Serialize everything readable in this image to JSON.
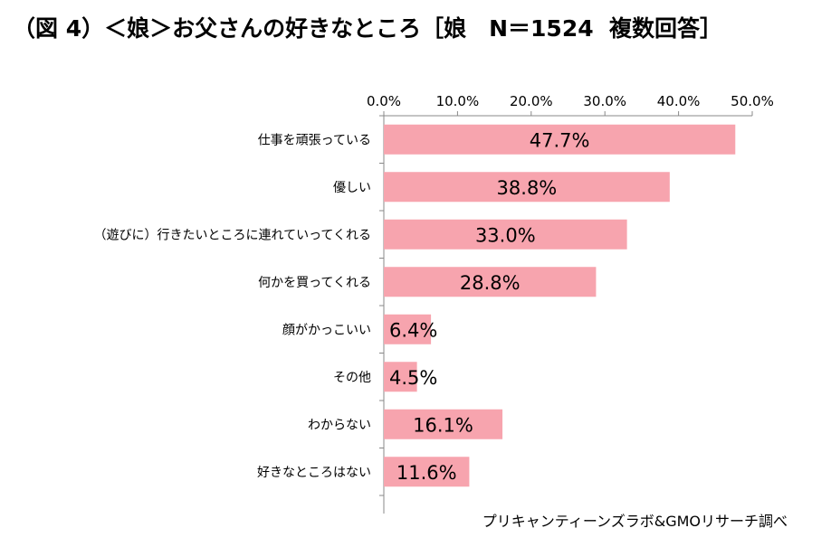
{
  "title": "（図 4）＜娘＞お父さんの好きなところ［娘　N＝1524  複数回答］",
  "source": "プリキャンティーンズラボ&GMOリサーチ調べ",
  "colors": {
    "bar": "#f7a4ae",
    "axis": "#888888"
  },
  "chart_data": {
    "type": "bar",
    "orientation": "horizontal",
    "title": "（図 4）＜娘＞お父さんの好きなところ［娘　N＝1524  複数回答］",
    "categories": [
      "仕事を頑張っている",
      "優しい",
      "（遊びに）行きたいところに連れていってくれる",
      "何かを買ってくれる",
      "顔がかっこいい",
      "その他",
      "わからない",
      "好きなところはない"
    ],
    "values": [
      47.7,
      38.8,
      33.0,
      28.8,
      6.4,
      4.5,
      16.1,
      11.6
    ],
    "value_labels": [
      "47.7%",
      "38.8%",
      "33.0%",
      "28.8%",
      "6.4%",
      "4.5%",
      "16.1%",
      "11.6%"
    ],
    "xlim": [
      0,
      50
    ],
    "xticks": [
      "0.0%",
      "10.0%",
      "20.0%",
      "30.0%",
      "40.0%",
      "50.0%"
    ],
    "xtick_values": [
      0,
      10,
      20,
      30,
      40,
      50
    ],
    "axis_position": "top",
    "grid": false,
    "xlabel": "",
    "ylabel": ""
  }
}
